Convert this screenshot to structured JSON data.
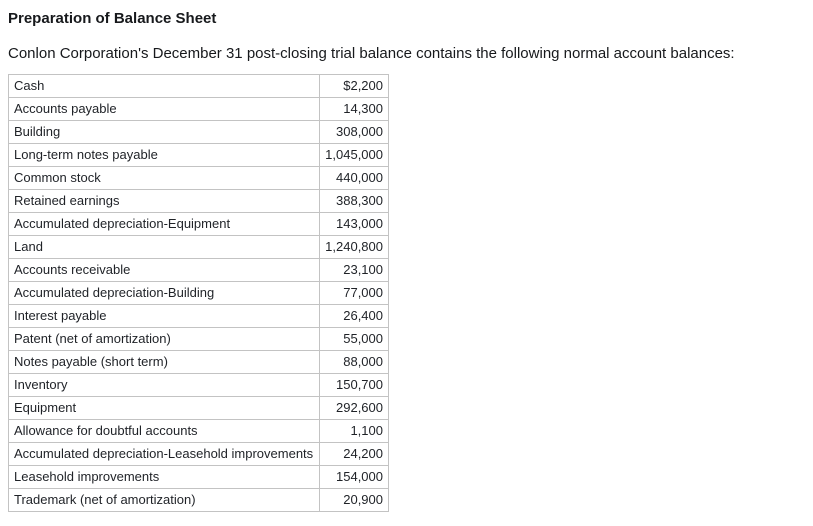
{
  "page": {
    "title": "Preparation of Balance Sheet",
    "intro": "Conlon Corporation's December 31 post-closing trial balance contains the following normal account balances:"
  },
  "table": {
    "rows": [
      {
        "account": "Cash",
        "amount": "$2,200"
      },
      {
        "account": "Accounts payable",
        "amount": "14,300"
      },
      {
        "account": "Building",
        "amount": "308,000"
      },
      {
        "account": "Long-term notes payable",
        "amount": "1,045,000"
      },
      {
        "account": "Common stock",
        "amount": "440,000"
      },
      {
        "account": "Retained earnings",
        "amount": "388,300"
      },
      {
        "account": "Accumulated depreciation-Equipment",
        "amount": "143,000"
      },
      {
        "account": "Land",
        "amount": "1,240,800"
      },
      {
        "account": "Accounts receivable",
        "amount": "23,100"
      },
      {
        "account": "Accumulated depreciation-Building",
        "amount": "77,000"
      },
      {
        "account": "Interest payable",
        "amount": "26,400"
      },
      {
        "account": "Patent (net of amortization)",
        "amount": "55,000"
      },
      {
        "account": "Notes payable (short term)",
        "amount": "88,000"
      },
      {
        "account": "Inventory",
        "amount": "150,700"
      },
      {
        "account": "Equipment",
        "amount": "292,600"
      },
      {
        "account": "Allowance for doubtful accounts",
        "amount": "1,100"
      },
      {
        "account": "Accumulated depreciation-Leasehold improvements",
        "amount": "24,200"
      },
      {
        "account": "Leasehold improvements",
        "amount": "154,000"
      },
      {
        "account": "Trademark (net of amortization)",
        "amount": "20,900"
      }
    ]
  },
  "colors": {
    "border": "#c3c3c3",
    "text": "#1f2227",
    "background": "#ffffff"
  }
}
